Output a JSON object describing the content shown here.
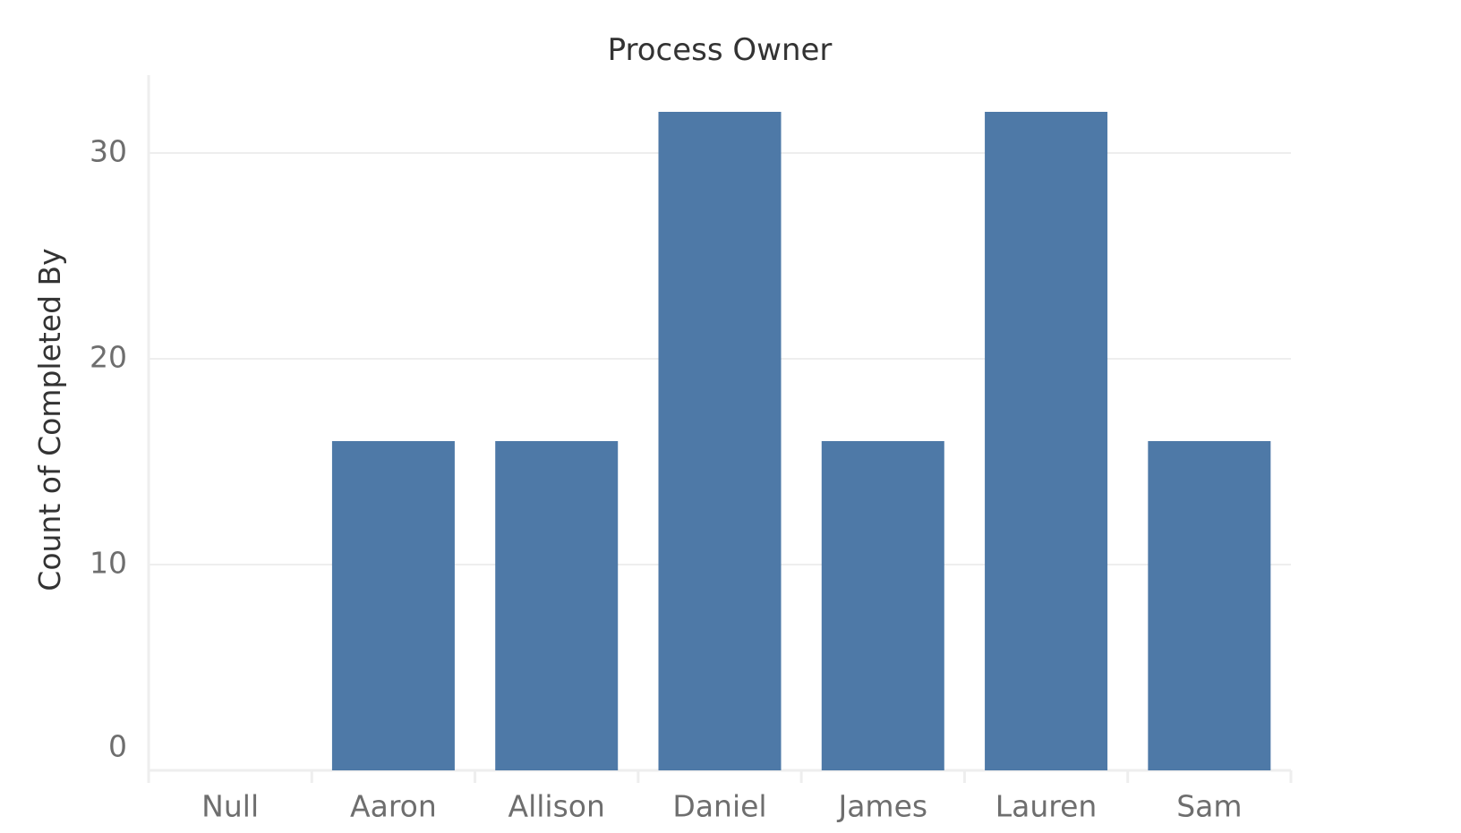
{
  "chart_data": {
    "type": "bar",
    "title": "Process Owner",
    "xlabel": "",
    "ylabel": "Count of Completed By",
    "categories": [
      "Null",
      "Aaron",
      "Allison",
      "Daniel",
      "James",
      "Lauren",
      "Sam"
    ],
    "values": [
      0,
      16,
      16,
      32,
      16,
      32,
      16
    ],
    "ylim": [
      0,
      34
    ],
    "yticks": [
      0,
      10,
      20,
      30
    ],
    "ytick_labels": [
      "0",
      "10",
      "20",
      "30"
    ],
    "grid": true,
    "legend": "none",
    "bar_color": "#4e79a7"
  }
}
